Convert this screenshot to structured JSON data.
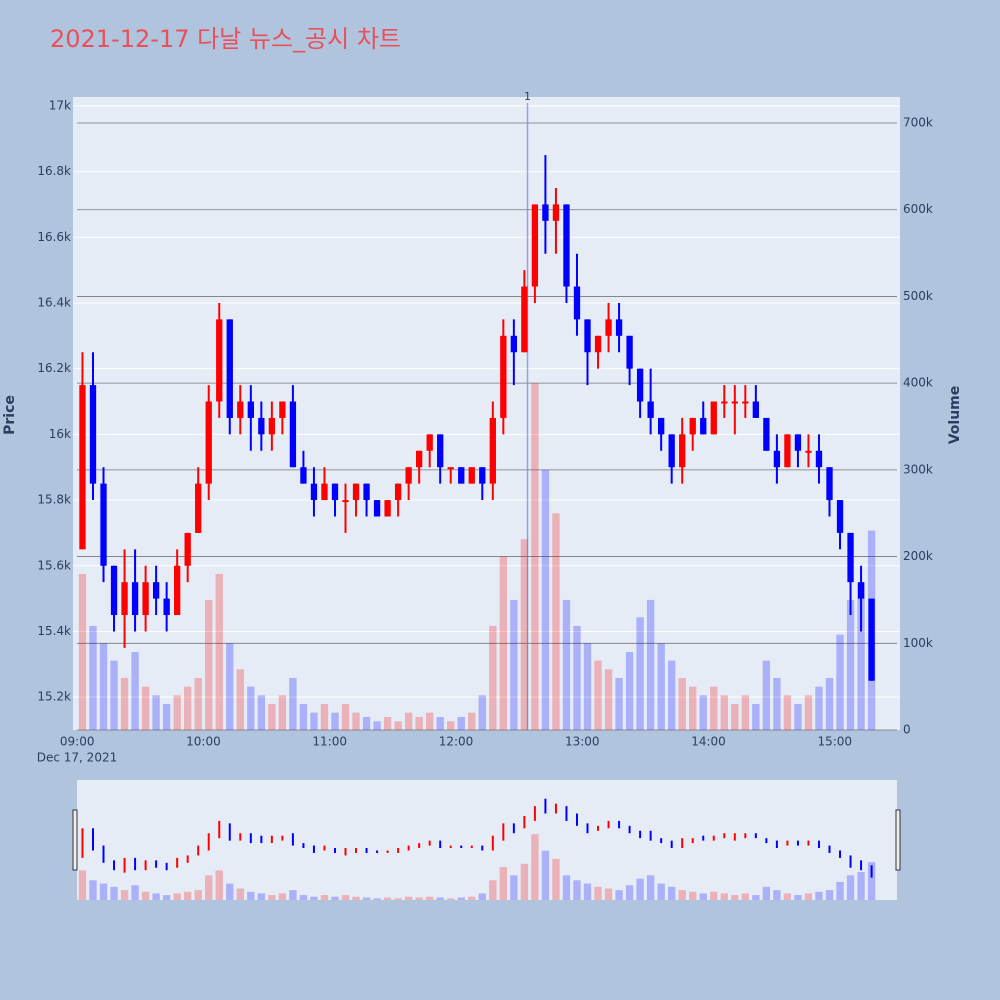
{
  "chart_data": {
    "type": "candlestick",
    "title": "2021-12-17 다날 뉴스_공시 차트",
    "y_title": "Price",
    "y2_title": "Volume",
    "x_date_label": "Dec 17, 2021",
    "increasing_color": "#ff0000",
    "decreasing_color": "#0000ff",
    "xlim": [
      "08:58",
      "15:31"
    ],
    "xticks": [
      "09:00",
      "10:00",
      "11:00",
      "12:00",
      "13:00",
      "14:00",
      "15:00"
    ],
    "ylim": [
      15100,
      17027
    ],
    "yticks": [
      {
        "value": 15200,
        "label": "15.2k"
      },
      {
        "value": 15400,
        "label": "15.4k"
      },
      {
        "value": 15600,
        "label": "15.6k"
      },
      {
        "value": 15800,
        "label": "15.8k"
      },
      {
        "value": 16000,
        "label": "16k"
      },
      {
        "value": 16200,
        "label": "16.2k"
      },
      {
        "value": 16400,
        "label": "16.4k"
      },
      {
        "value": 16600,
        "label": "16.6k"
      },
      {
        "value": 16800,
        "label": "16.8k"
      },
      {
        "value": 17000,
        "label": "17k"
      }
    ],
    "y2lim": [
      0,
      730000
    ],
    "y2ticks": [
      0,
      {
        "value": 100000,
        "label": "100k"
      },
      {
        "value": 200000,
        "label": "200k"
      },
      {
        "value": 300000,
        "label": "300k"
      },
      {
        "value": 400000,
        "label": "400k"
      },
      {
        "value": 500000,
        "label": "500k"
      },
      {
        "value": 600000,
        "label": "600k"
      },
      {
        "value": 700000,
        "label": "700k"
      }
    ],
    "annotations": [
      {
        "x": "12:34",
        "text": "1"
      }
    ],
    "x": [
      "09:00",
      "09:05",
      "09:10",
      "09:15",
      "09:20",
      "09:25",
      "09:30",
      "09:35",
      "09:40",
      "09:45",
      "09:50",
      "09:55",
      "10:00",
      "10:05",
      "10:10",
      "10:15",
      "10:20",
      "10:25",
      "10:30",
      "10:35",
      "10:40",
      "10:45",
      "10:50",
      "10:55",
      "11:00",
      "11:05",
      "11:10",
      "11:15",
      "11:20",
      "11:25",
      "11:30",
      "11:35",
      "11:40",
      "11:45",
      "11:50",
      "11:55",
      "12:00",
      "12:05",
      "12:10",
      "12:15",
      "12:20",
      "12:25",
      "12:30",
      "12:35",
      "12:40",
      "12:45",
      "12:50",
      "12:55",
      "13:00",
      "13:05",
      "13:10",
      "13:15",
      "13:20",
      "13:25",
      "13:30",
      "13:35",
      "13:40",
      "13:45",
      "13:50",
      "13:55",
      "14:00",
      "14:05",
      "14:10",
      "14:15",
      "14:20",
      "14:25",
      "14:30",
      "14:35",
      "14:40",
      "14:45",
      "14:50",
      "14:55",
      "15:00",
      "15:05",
      "15:10",
      "15:15"
    ],
    "open": [
      15650,
      16150,
      15850,
      15600,
      15450,
      15550,
      15450,
      15550,
      15500,
      15450,
      15600,
      15700,
      15850,
      16100,
      16350,
      16050,
      16100,
      16050,
      16000,
      16050,
      16100,
      15900,
      15850,
      15800,
      15850,
      15800,
      15800,
      15850,
      15800,
      15750,
      15800,
      15850,
      15900,
      15950,
      16000,
      15900,
      15900,
      15850,
      15900,
      15850,
      16050,
      16300,
      16250,
      16450,
      16700,
      16650,
      16700,
      16450,
      16350,
      16250,
      16300,
      16350,
      16300,
      16200,
      16100,
      16050,
      16000,
      15900,
      16000,
      16050,
      16000,
      16100,
      16100,
      16100,
      16100,
      16050,
      15950,
      15900,
      16000,
      15950,
      15950,
      15900,
      15800,
      15700,
      15550,
      15500
    ],
    "high": [
      16250,
      16250,
      15900,
      15600,
      15650,
      15650,
      15600,
      15600,
      15550,
      15650,
      15700,
      15900,
      16150,
      16400,
      16350,
      16150,
      16150,
      16100,
      16100,
      16100,
      16150,
      15950,
      15900,
      15900,
      15850,
      15850,
      15850,
      15850,
      15800,
      15800,
      15850,
      15900,
      15950,
      16000,
      16000,
      15900,
      15900,
      15900,
      15900,
      16100,
      16350,
      16350,
      16500,
      16700,
      16850,
      16750,
      16700,
      16550,
      16350,
      16300,
      16400,
      16400,
      16300,
      16200,
      16200,
      16050,
      16000,
      16050,
      16050,
      16100,
      16100,
      16150,
      16150,
      16150,
      16150,
      16050,
      16000,
      16000,
      16000,
      16000,
      16000,
      15900,
      15800,
      15700,
      15600,
      15500
    ],
    "low": [
      15650,
      15800,
      15550,
      15400,
      15350,
      15400,
      15400,
      15450,
      15400,
      15450,
      15550,
      15700,
      15800,
      16050,
      16000,
      16000,
      15950,
      15950,
      15950,
      16000,
      15900,
      15850,
      15750,
      15800,
      15750,
      15700,
      15750,
      15750,
      15750,
      15750,
      15750,
      15800,
      15850,
      15900,
      15850,
      15850,
      15850,
      15850,
      15800,
      15800,
      16000,
      16150,
      16250,
      16400,
      16550,
      16550,
      16400,
      16300,
      16150,
      16200,
      16250,
      16250,
      16150,
      16050,
      16000,
      15950,
      15850,
      15850,
      15950,
      16000,
      16000,
      16050,
      16000,
      16050,
      16050,
      15950,
      15850,
      15900,
      15900,
      15900,
      15850,
      15750,
      15650,
      15450,
      15400,
      15250
    ],
    "close": [
      16150,
      15850,
      15600,
      15450,
      15550,
      15450,
      15550,
      15500,
      15450,
      15600,
      15700,
      15850,
      16100,
      16350,
      16050,
      16100,
      16050,
      16000,
      16050,
      16100,
      15900,
      15850,
      15800,
      15850,
      15800,
      15800,
      15850,
      15800,
      15750,
      15800,
      15850,
      15900,
      15950,
      16000,
      15900,
      15900,
      15850,
      15900,
      15850,
      16050,
      16300,
      16250,
      16450,
      16700,
      16650,
      16700,
      16450,
      16350,
      16250,
      16300,
      16350,
      16300,
      16200,
      16100,
      16050,
      16000,
      15900,
      16000,
      16050,
      16000,
      16100,
      16100,
      16100,
      16100,
      16050,
      15950,
      15900,
      16000,
      15950,
      15950,
      15900,
      15800,
      15700,
      15550,
      15500,
      15250
    ],
    "volume": [
      180000,
      120000,
      100000,
      80000,
      60000,
      90000,
      50000,
      40000,
      30000,
      40000,
      50000,
      60000,
      150000,
      180000,
      100000,
      70000,
      50000,
      40000,
      30000,
      40000,
      60000,
      30000,
      20000,
      30000,
      20000,
      30000,
      20000,
      15000,
      10000,
      15000,
      10000,
      20000,
      15000,
      20000,
      15000,
      10000,
      15000,
      20000,
      40000,
      120000,
      200000,
      150000,
      220000,
      400000,
      300000,
      250000,
      150000,
      120000,
      100000,
      80000,
      70000,
      60000,
      90000,
      130000,
      150000,
      100000,
      80000,
      60000,
      50000,
      40000,
      50000,
      40000,
      30000,
      40000,
      30000,
      80000,
      60000,
      40000,
      30000,
      40000,
      50000,
      60000,
      110000,
      150000,
      170000,
      230000
    ]
  }
}
